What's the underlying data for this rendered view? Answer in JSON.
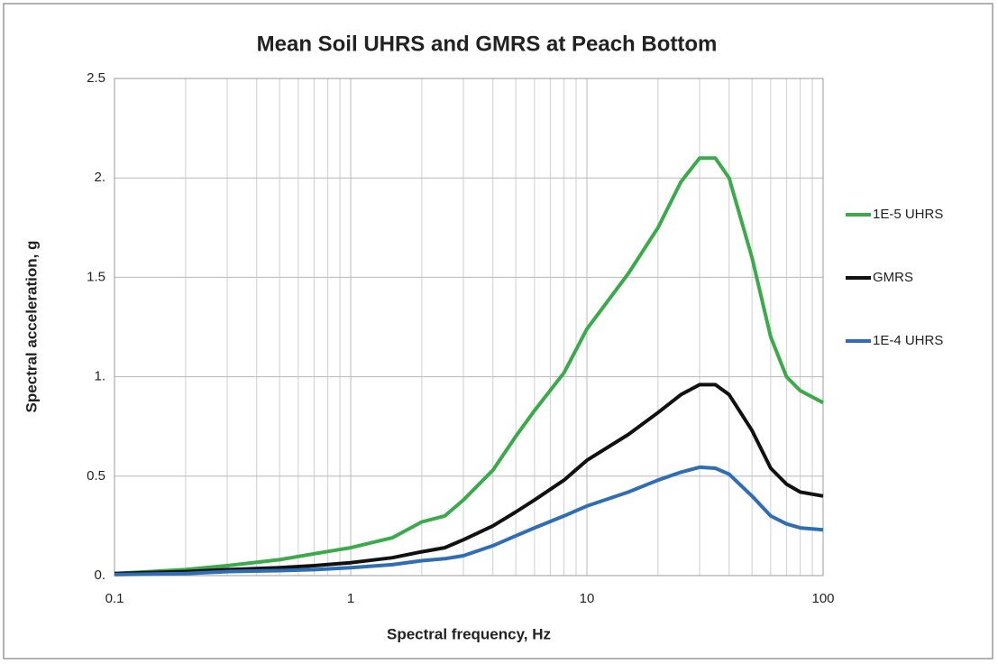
{
  "chart_data": {
    "type": "line",
    "title": "Mean Soil UHRS and GMRS at Peach Bottom",
    "xlabel": "Spectral frequency, Hz",
    "ylabel": "Spectral acceleration, g",
    "xscale": "log",
    "x": [
      0.1,
      0.2,
      0.3,
      0.5,
      0.7,
      1,
      1.5,
      2,
      2.5,
      3,
      4,
      5,
      6,
      8,
      10,
      15,
      20,
      25,
      30,
      35,
      40,
      50,
      60,
      70,
      80,
      100
    ],
    "series": [
      {
        "name": "1E-5 UHRS",
        "color": "#3aaa4a",
        "values": [
          0.01,
          0.03,
          0.05,
          0.08,
          0.11,
          0.14,
          0.19,
          0.27,
          0.3,
          0.38,
          0.53,
          0.7,
          0.83,
          1.02,
          1.24,
          1.52,
          1.75,
          1.98,
          2.1,
          2.1,
          2.0,
          1.6,
          1.2,
          1.0,
          0.93,
          0.87
        ]
      },
      {
        "name": "GMRS",
        "color": "#111111",
        "values": [
          0.01,
          0.02,
          0.03,
          0.04,
          0.05,
          0.065,
          0.09,
          0.12,
          0.14,
          0.18,
          0.25,
          0.32,
          0.38,
          0.48,
          0.58,
          0.71,
          0.82,
          0.91,
          0.96,
          0.96,
          0.91,
          0.73,
          0.54,
          0.46,
          0.42,
          0.4
        ]
      },
      {
        "name": "1E-4 UHRS",
        "color": "#2f6db5",
        "values": [
          0.005,
          0.01,
          0.02,
          0.025,
          0.03,
          0.04,
          0.055,
          0.075,
          0.085,
          0.1,
          0.15,
          0.2,
          0.24,
          0.3,
          0.35,
          0.42,
          0.48,
          0.52,
          0.545,
          0.54,
          0.51,
          0.4,
          0.3,
          0.26,
          0.24,
          0.23
        ]
      }
    ],
    "xlim": [
      0.1,
      100
    ],
    "xticks": [
      0.1,
      1,
      10,
      100
    ],
    "ylim": [
      0,
      2.5
    ],
    "yticks": [
      {
        "value": 0,
        "label": "0."
      },
      0.5,
      {
        "value": 1,
        "label": "1."
      },
      1.5,
      {
        "value": 2,
        "label": "2."
      },
      2.5
    ],
    "grid": true,
    "legend": "right"
  }
}
